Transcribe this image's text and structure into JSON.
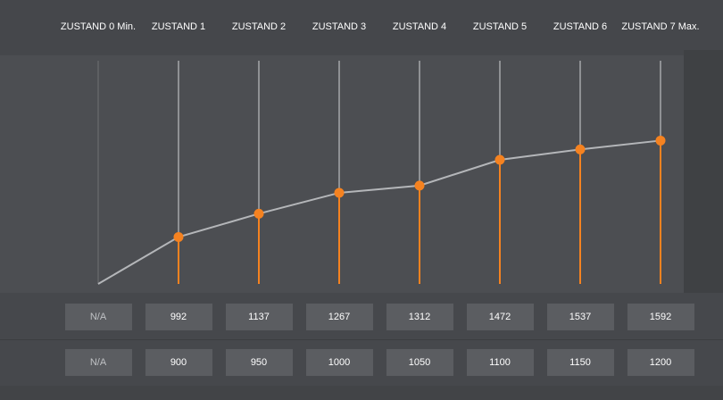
{
  "states": [
    {
      "label": "ZUSTAND 0 Min.",
      "measured": "N/A",
      "target": "N/A"
    },
    {
      "label": "ZUSTAND 1",
      "measured": "992",
      "target": "900"
    },
    {
      "label": "ZUSTAND 2",
      "measured": "1137",
      "target": "950"
    },
    {
      "label": "ZUSTAND 3",
      "measured": "1267",
      "target": "1000"
    },
    {
      "label": "ZUSTAND 4",
      "measured": "1312",
      "target": "1050"
    },
    {
      "label": "ZUSTAND 5",
      "measured": "1472",
      "target": "1100"
    },
    {
      "label": "ZUSTAND 6",
      "measured": "1537",
      "target": "1150"
    },
    {
      "label": "ZUSTAND 7 Max.",
      "measured": "1592",
      "target": "1200"
    }
  ],
  "chart_data": {
    "type": "line",
    "categories": [
      "ZUSTAND 0 Min.",
      "ZUSTAND 1",
      "ZUSTAND 2",
      "ZUSTAND 3",
      "ZUSTAND 4",
      "ZUSTAND 5",
      "ZUSTAND 6",
      "ZUSTAND 7 Max."
    ],
    "values": [
      null,
      992,
      1137,
      1267,
      1312,
      1472,
      1537,
      1592
    ],
    "start_point": 700,
    "ylim": [
      700,
      2200
    ],
    "colors": {
      "line": "#b4b6b9",
      "marker": "#f58220",
      "stem": "#f58220",
      "track": "#a5a7aa",
      "track_first": "#6e7073"
    }
  }
}
